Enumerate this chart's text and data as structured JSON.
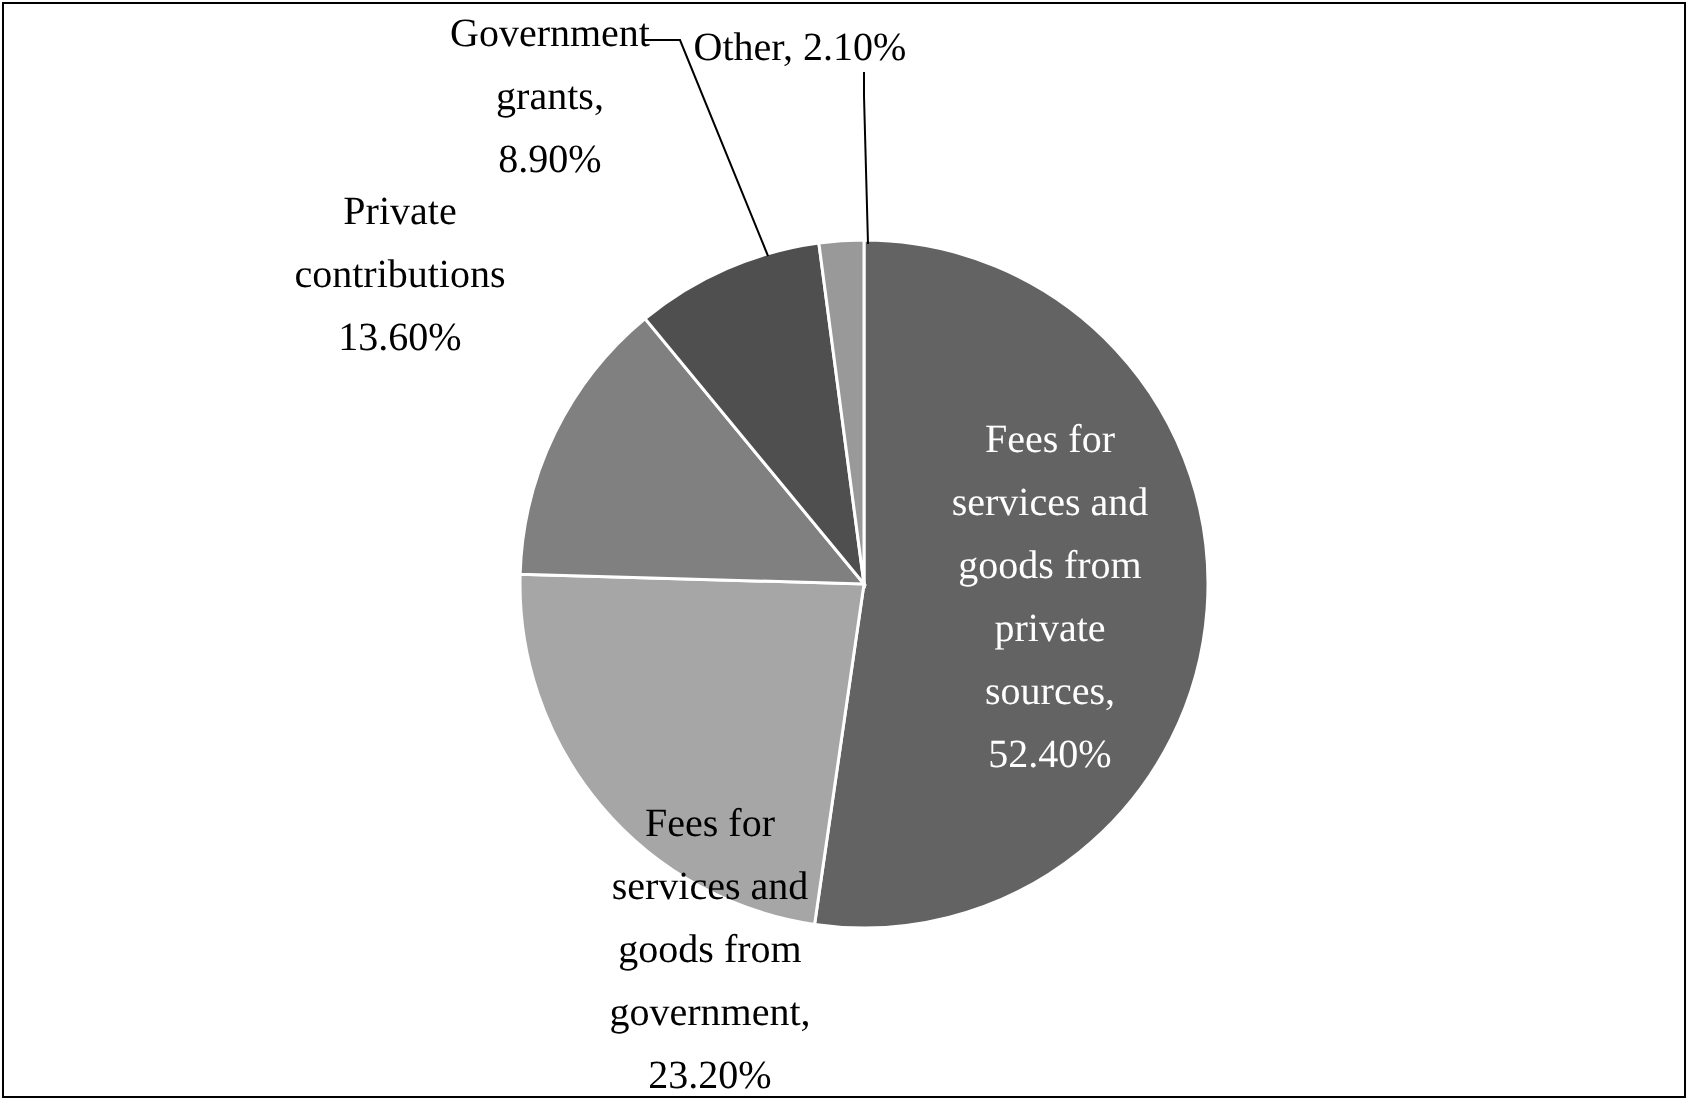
{
  "chart_data": {
    "type": "pie",
    "categories": [
      "Fees for services and goods from private sources",
      "Fees for services and goods from government",
      "Private contributions",
      "Government grants",
      "Other"
    ],
    "values": [
      52.4,
      23.2,
      13.6,
      8.9,
      2.1
    ],
    "value_labels": [
      ", 52.40%",
      ", 23.20%",
      "13.60%",
      ", 8.90%",
      ", 2.10%"
    ],
    "colors": [
      "#636363",
      "#a6a6a6",
      "#808080",
      "#4f4f4f",
      "#999999"
    ]
  }
}
